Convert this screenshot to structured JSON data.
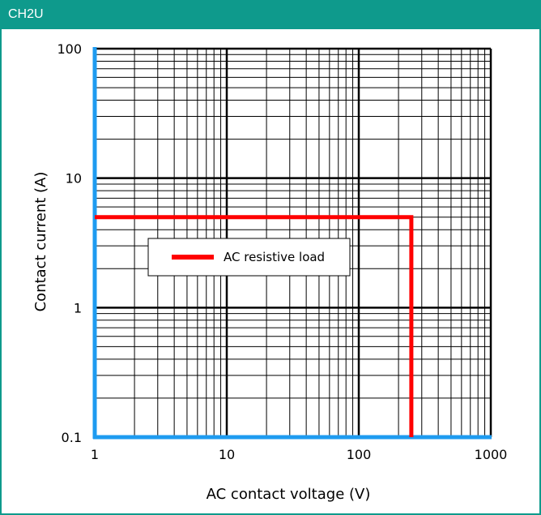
{
  "header": {
    "title": "CH2U"
  },
  "colors": {
    "header_bg": "#0e9a8c",
    "series": "#ff0000",
    "axis": "#1e9bf0",
    "grid": "#000000"
  },
  "chart_data": {
    "type": "line",
    "title": "",
    "xlabel": "AC contact voltage (V)",
    "ylabel": "Contact current (A)",
    "x_scale": "log",
    "y_scale": "log",
    "xlim": [
      1,
      1000
    ],
    "ylim": [
      0.1,
      100
    ],
    "x_ticks": [
      "1",
      "10",
      "100",
      "1000"
    ],
    "y_ticks": [
      "0.1",
      "1",
      "10",
      "100"
    ],
    "grid": true,
    "legend_position": "center-left",
    "series": [
      {
        "name": "AC resistive load",
        "color": "#ff0000",
        "x": [
          1,
          250,
          250
        ],
        "y": [
          5,
          5,
          0.1
        ]
      }
    ]
  }
}
